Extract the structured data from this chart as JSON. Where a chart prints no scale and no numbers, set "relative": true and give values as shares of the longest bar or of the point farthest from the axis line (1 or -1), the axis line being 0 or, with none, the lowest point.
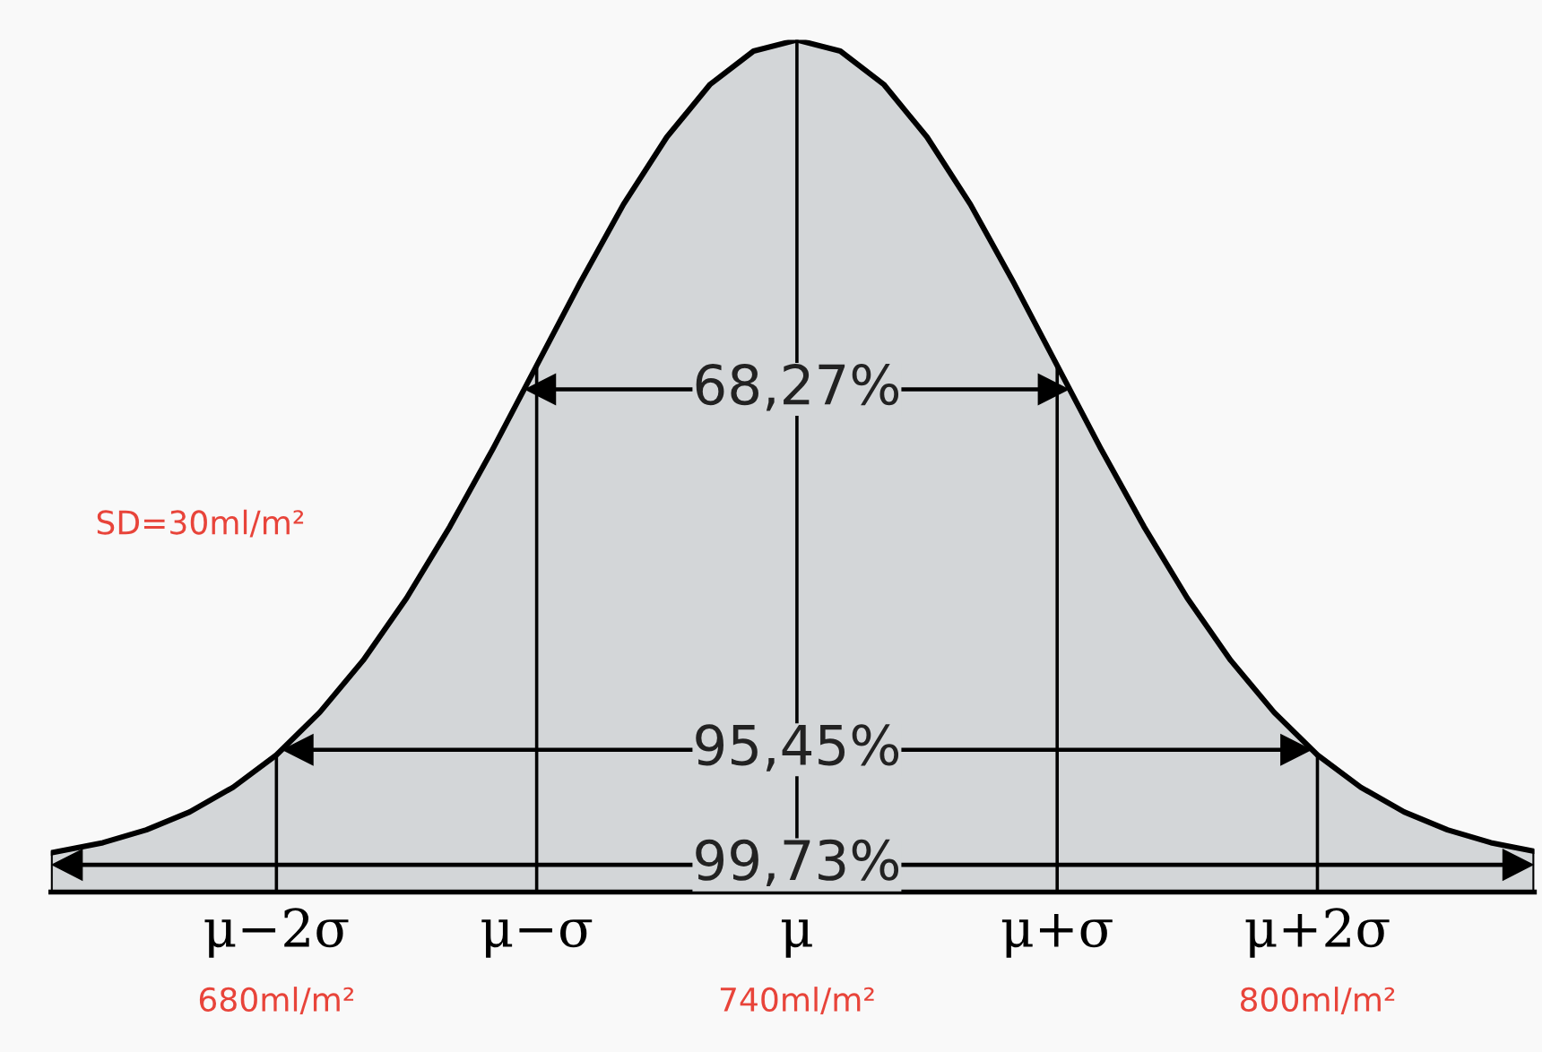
{
  "chart_data": {
    "type": "area",
    "relative": true,
    "color": "#d3d6d8",
    "x": [
      654,
      660,
      665,
      670,
      675,
      680,
      685,
      690,
      695,
      700,
      705,
      710,
      715,
      720,
      725,
      730,
      735,
      740,
      745,
      750,
      755,
      760,
      765,
      770,
      775,
      780,
      785,
      790,
      795,
      800,
      805,
      810,
      815,
      820,
      825
    ],
    "values": [
      0.046,
      0.058,
      0.073,
      0.094,
      0.123,
      0.161,
      0.211,
      0.272,
      0.345,
      0.429,
      0.521,
      0.618,
      0.715,
      0.807,
      0.886,
      0.948,
      0.987,
      1,
      0.987,
      0.948,
      0.886,
      0.807,
      0.715,
      0.618,
      0.521,
      0.429,
      0.345,
      0.272,
      0.211,
      0.161,
      0.123,
      0.094,
      0.073,
      0.058,
      0.048
    ],
    "xlim": [
      654,
      825
    ],
    "xticks": [
      {
        "value": 680,
        "label": "680ml/m²"
      },
      {
        "value": 740,
        "label": "740ml/m²"
      },
      {
        "value": 800,
        "label": "800ml/m²"
      }
    ],
    "ref_lines": [
      {
        "axis": "x",
        "value": 680
      },
      {
        "axis": "x",
        "value": 710
      },
      {
        "axis": "x",
        "value": 740
      },
      {
        "axis": "x",
        "value": 770
      },
      {
        "axis": "x",
        "value": 800
      }
    ],
    "annotations": [
      "SD=30ml/m²",
      {
        "text": "68,27%",
        "x": 740,
        "y": 0.59
      },
      {
        "text": "95,45%",
        "x": 740,
        "y": 0.167
      },
      {
        "text": "99,73%",
        "x": 740,
        "y": 0.032
      },
      {
        "text": "μ−2σ",
        "x": 680,
        "y": 0
      },
      {
        "text": "μ−σ",
        "x": 710,
        "y": 0
      },
      {
        "text": "μ",
        "x": 740,
        "y": 0
      },
      {
        "text": "μ+σ",
        "x": 770,
        "y": 0
      },
      {
        "text": "μ+2σ",
        "x": 800,
        "y": 0
      }
    ]
  }
}
